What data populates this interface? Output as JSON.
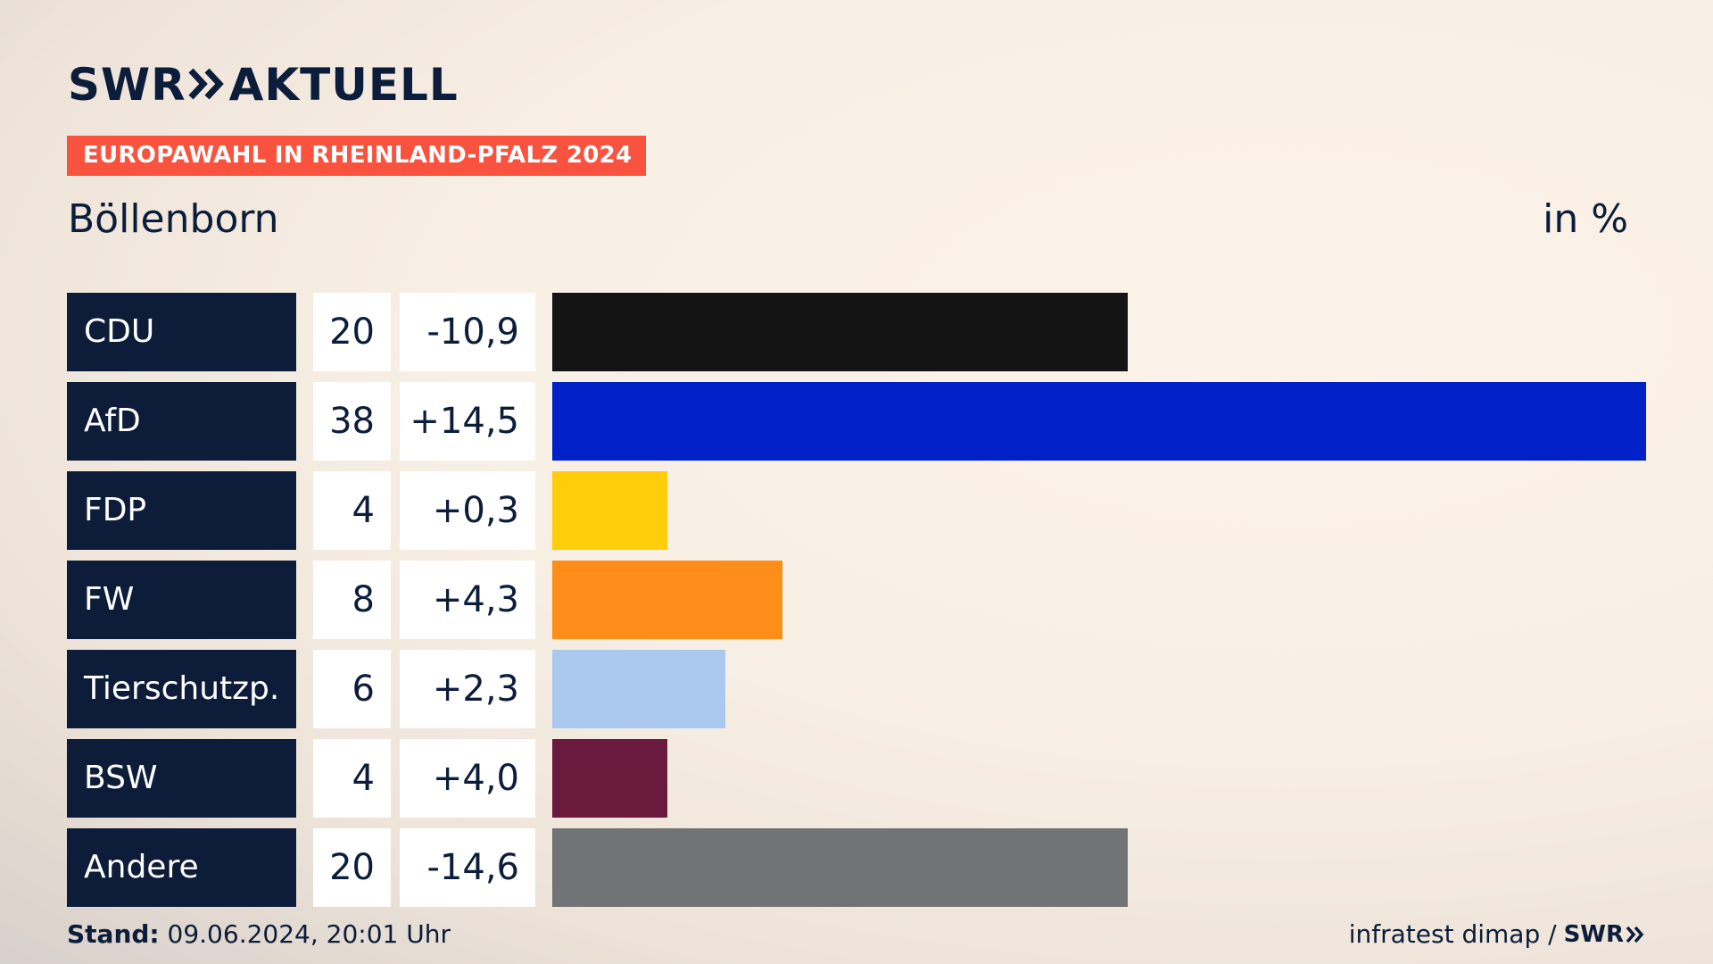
{
  "brand": {
    "logo_text_left": "SWR",
    "logo_text_right": "AKTUELL"
  },
  "banner": {
    "text": "EUROPAWAHL IN RHEINLAND-PFALZ 2024"
  },
  "place": "Böllenborn",
  "unit": "in %",
  "colors": {
    "banner": "#f9533f",
    "label_bg": "#0c1c39",
    "text": "#0b1d3a"
  },
  "chart_data": {
    "type": "bar",
    "orientation": "horizontal",
    "title": "Böllenborn",
    "unit": "in %",
    "categories": [
      "CDU",
      "AfD",
      "FDP",
      "FW",
      "Tierschutzp.",
      "BSW",
      "Andere"
    ],
    "values": [
      20,
      38,
      4,
      8,
      6,
      4,
      20
    ],
    "value_labels": [
      "20",
      "38",
      "4",
      "8",
      "6",
      "4",
      "20"
    ],
    "changes": [
      "-10,9",
      "+14,5",
      "+0,3",
      "+4,3",
      "+2,3",
      "+4,0",
      "-14,6"
    ],
    "bar_colors": [
      "#141414",
      "#0021c8",
      "#ffcd0a",
      "#ff8d19",
      "#abc9ef",
      "#6a1a3d",
      "#727374"
    ],
    "xlim": [
      0,
      38
    ]
  },
  "footer": {
    "stand_label": "Stand:",
    "stand_value": "09.06.2024, 20:01 Uhr",
    "source": "infratest dimap /",
    "source_brand": "SWR"
  }
}
